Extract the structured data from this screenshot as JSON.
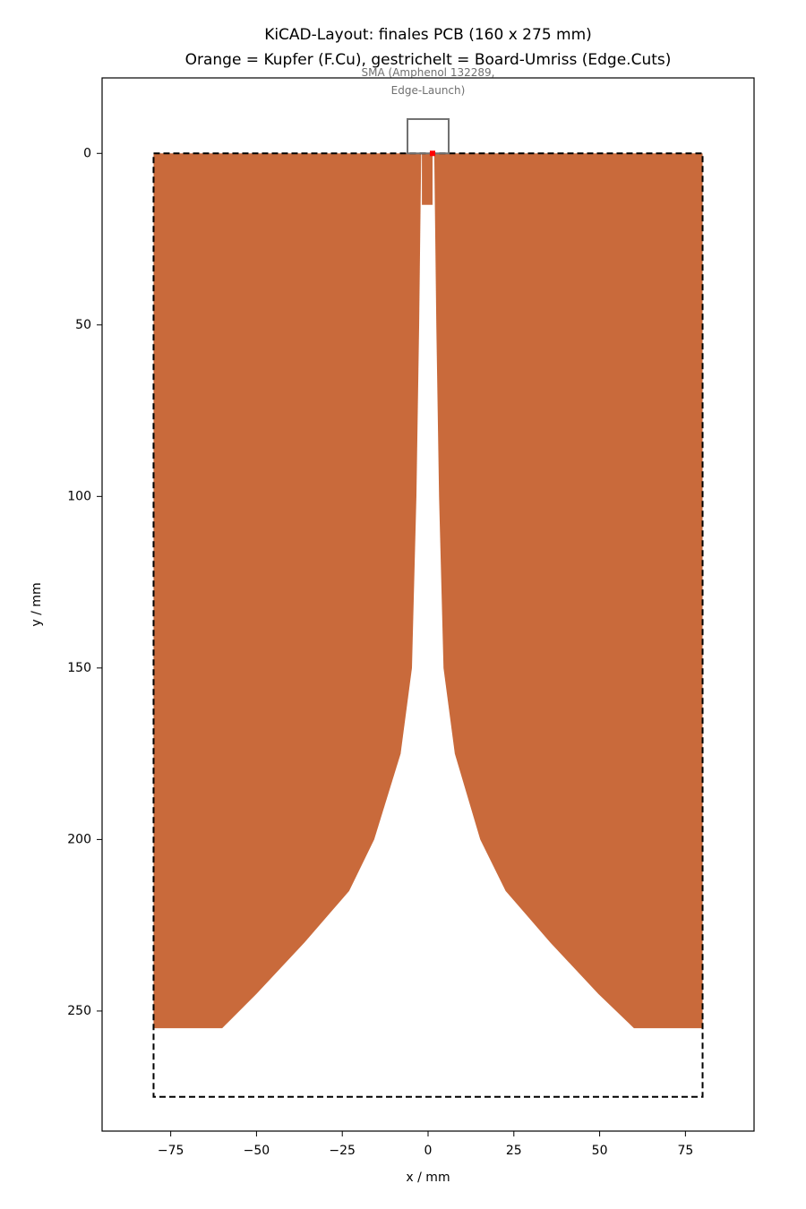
{
  "chart_data": {
    "type": "layout",
    "title": [
      "KiCAD-Layout: finales PCB (160 x 275 mm)",
      "Orange = Kupfer (F.Cu), gestrichelt = Board-Umriss (Edge.Cuts)"
    ],
    "xlabel": "x / mm",
    "ylabel": "y / mm",
    "xlim": [
      -95,
      95
    ],
    "ylim": [
      285,
      -22
    ],
    "inverted_y": true,
    "xticks": [
      {
        "value": -75,
        "label": "−75"
      },
      {
        "value": -50,
        "label": "−50"
      },
      {
        "value": -25,
        "label": "−25"
      },
      0,
      25,
      50,
      75
    ],
    "yticks": [
      0,
      50,
      100,
      150,
      200,
      250
    ],
    "copper_color": "#c96a3b",
    "copper": [
      {
        "x": [
          -80,
          -2,
          -2.6,
          -3.4,
          -4.7,
          -8,
          -15.7,
          -23,
          -36,
          -50,
          -60,
          -80
        ],
        "y": [
          0,
          0,
          50,
          100,
          150,
          175,
          200,
          215,
          230,
          245,
          255,
          255
        ]
      },
      {
        "x": [
          80,
          1.8,
          2.4,
          3.2,
          4.5,
          7.8,
          15.2,
          22.6,
          35.6,
          49.6,
          60,
          80
        ],
        "y": [
          0,
          0,
          50,
          100,
          150,
          175,
          200,
          215,
          230,
          245,
          255,
          255
        ]
      }
    ],
    "feed": {
      "x": [
        -1.8,
        1.3
      ],
      "y": [
        0,
        15
      ]
    },
    "board": {
      "x": [
        -80,
        80
      ],
      "y": [
        0,
        275
      ],
      "color": "#000000"
    },
    "connector": {
      "x": [
        -6,
        6
      ],
      "y": [
        -10,
        0
      ],
      "color": "#707070"
    },
    "feed_point": {
      "x": 1.3,
      "y": 0,
      "color": "#ff0000"
    },
    "annotation": {
      "text": [
        "SMA (Amphenol 132289,",
        "Edge-Launch)"
      ],
      "x": 0,
      "y": -14,
      "color": "#707070"
    }
  }
}
